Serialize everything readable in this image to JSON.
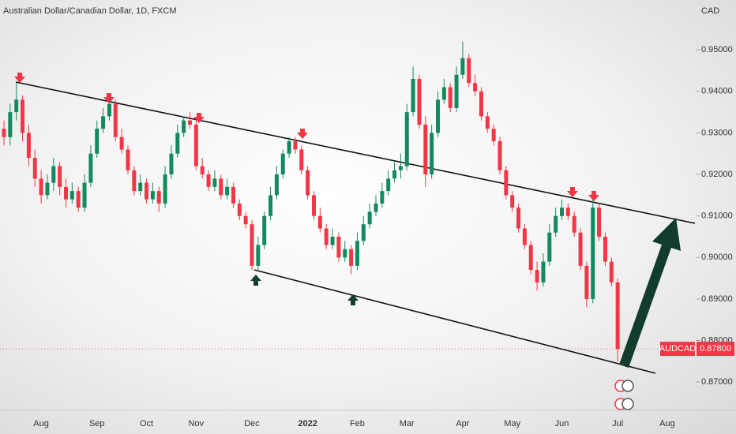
{
  "chart_data": {
    "type": "candlestick",
    "title": "Australian Dollar/Canadian Dollar, 1D, FXCM",
    "currency": "CAD",
    "up_color": "#138a5e",
    "down_color": "#f23645",
    "categories": [
      null,
      null,
      null,
      null,
      null,
      null,
      "Aug",
      null,
      null,
      null,
      null,
      null,
      null,
      null,
      null,
      "Sep",
      null,
      null,
      null,
      null,
      null,
      null,
      null,
      "Oct",
      null,
      null,
      null,
      null,
      null,
      null,
      null,
      "Nov",
      null,
      null,
      null,
      null,
      null,
      null,
      null,
      null,
      "Dec",
      null,
      null,
      null,
      null,
      null,
      null,
      null,
      null,
      "2022",
      null,
      null,
      null,
      null,
      null,
      null,
      null,
      "Feb",
      null,
      null,
      null,
      null,
      null,
      null,
      null,
      "Mar",
      null,
      null,
      null,
      null,
      null,
      null,
      null,
      null,
      "Apr",
      null,
      null,
      null,
      null,
      null,
      null,
      null,
      "May",
      null,
      null,
      null,
      null,
      null,
      null,
      null,
      "Jun",
      null,
      null,
      null,
      null,
      null,
      null,
      null,
      null,
      "Jul",
      null,
      null,
      null,
      null,
      null,
      null,
      null,
      "Aug"
    ],
    "open": [
      0.931,
      0.929,
      0.935,
      0.938,
      0.93,
      0.924,
      0.919,
      0.915,
      0.918,
      0.922,
      0.917,
      0.914,
      0.916,
      0.912,
      0.918,
      0.925,
      0.931,
      0.934,
      0.937,
      0.929,
      0.926,
      0.921,
      0.916,
      0.918,
      0.914,
      0.916,
      0.913,
      0.92,
      0.925,
      0.93,
      0.933,
      0.932,
      0.922,
      0.92,
      0.917,
      0.919,
      0.915,
      0.917,
      0.913,
      0.91,
      0.908,
      0.898,
      0.903,
      0.91,
      0.915,
      0.92,
      0.925,
      0.928,
      0.926,
      0.921,
      0.915,
      0.91,
      0.907,
      0.903,
      0.905,
      0.9,
      0.902,
      0.898,
      0.904,
      0.908,
      0.911,
      0.913,
      0.916,
      0.919,
      0.921,
      0.922,
      0.935,
      0.943,
      0.932,
      0.92,
      0.93,
      0.938,
      0.941,
      0.936,
      0.944,
      0.948,
      0.942,
      0.94,
      0.934,
      0.931,
      0.928,
      0.921,
      0.915,
      0.912,
      0.907,
      0.903,
      0.897,
      0.894,
      0.899,
      0.906,
      0.91,
      0.912,
      0.91,
      0.906,
      0.898,
      0.89,
      0.912,
      0.905,
      0.899,
      0.894,
      null,
      null,
      null,
      null,
      null,
      null,
      null,
      null
    ],
    "high": [
      0.933,
      0.937,
      0.942,
      0.939,
      0.932,
      0.926,
      0.921,
      0.92,
      0.924,
      0.923,
      0.919,
      0.918,
      0.917,
      0.92,
      0.927,
      0.933,
      0.936,
      0.939,
      0.938,
      0.931,
      0.927,
      0.922,
      0.92,
      0.919,
      0.918,
      0.917,
      0.922,
      0.927,
      0.932,
      0.934,
      0.935,
      0.933,
      0.924,
      0.921,
      0.921,
      0.92,
      0.919,
      0.918,
      0.914,
      0.911,
      0.909,
      0.905,
      0.911,
      0.917,
      0.922,
      0.926,
      0.929,
      0.929,
      0.927,
      0.922,
      0.916,
      0.912,
      0.908,
      0.907,
      0.906,
      0.904,
      0.903,
      0.906,
      0.91,
      0.913,
      0.915,
      0.918,
      0.921,
      0.923,
      0.925,
      0.937,
      0.946,
      0.944,
      0.934,
      0.932,
      0.94,
      0.943,
      0.942,
      0.946,
      0.952,
      0.949,
      0.944,
      0.941,
      0.935,
      0.932,
      0.929,
      0.922,
      0.916,
      0.913,
      0.908,
      0.904,
      0.899,
      0.901,
      0.908,
      0.912,
      0.914,
      0.913,
      0.911,
      0.907,
      0.899,
      0.914,
      0.913,
      0.906,
      0.9,
      0.895,
      null,
      null,
      null,
      null,
      null,
      null,
      null,
      null
    ],
    "low": [
      0.927,
      0.927,
      0.933,
      0.928,
      0.922,
      0.917,
      0.913,
      0.914,
      0.916,
      0.915,
      0.912,
      0.913,
      0.911,
      0.911,
      0.917,
      0.924,
      0.93,
      0.933,
      0.928,
      0.925,
      0.92,
      0.915,
      0.915,
      0.913,
      0.913,
      0.911,
      0.912,
      0.919,
      0.924,
      0.929,
      0.931,
      0.921,
      0.919,
      0.916,
      0.916,
      0.914,
      0.914,
      0.912,
      0.909,
      0.907,
      0.897,
      0.897,
      0.902,
      0.909,
      0.914,
      0.919,
      0.924,
      0.925,
      0.92,
      0.914,
      0.909,
      0.906,
      0.902,
      0.902,
      0.899,
      0.899,
      0.896,
      0.897,
      0.903,
      0.907,
      0.91,
      0.912,
      0.915,
      0.918,
      0.919,
      0.921,
      0.934,
      0.931,
      0.917,
      0.919,
      0.929,
      0.937,
      0.935,
      0.935,
      0.943,
      0.941,
      0.939,
      0.933,
      0.93,
      0.927,
      0.92,
      0.914,
      0.911,
      0.906,
      0.902,
      0.896,
      0.892,
      0.893,
      0.898,
      0.905,
      0.909,
      0.909,
      0.905,
      0.897,
      0.888,
      0.889,
      0.904,
      0.898,
      0.893,
      0.875,
      null,
      null,
      null,
      null,
      null,
      null,
      null,
      null
    ],
    "close": [
      0.929,
      0.935,
      0.938,
      0.93,
      0.924,
      0.919,
      0.915,
      0.918,
      0.922,
      0.917,
      0.914,
      0.916,
      0.912,
      0.918,
      0.925,
      0.931,
      0.934,
      0.937,
      0.929,
      0.926,
      0.921,
      0.916,
      0.918,
      0.914,
      0.916,
      0.913,
      0.92,
      0.925,
      0.93,
      0.933,
      0.932,
      0.922,
      0.92,
      0.917,
      0.919,
      0.915,
      0.917,
      0.913,
      0.91,
      0.908,
      0.898,
      0.903,
      0.91,
      0.915,
      0.92,
      0.925,
      0.928,
      0.926,
      0.921,
      0.915,
      0.91,
      0.907,
      0.903,
      0.905,
      0.9,
      0.902,
      0.898,
      0.904,
      0.908,
      0.911,
      0.913,
      0.916,
      0.919,
      0.921,
      0.922,
      0.935,
      0.943,
      0.932,
      0.92,
      0.93,
      0.938,
      0.941,
      0.936,
      0.944,
      0.948,
      0.942,
      0.94,
      0.934,
      0.931,
      0.928,
      0.921,
      0.915,
      0.912,
      0.907,
      0.903,
      0.897,
      0.894,
      0.899,
      0.906,
      0.91,
      0.912,
      0.91,
      0.906,
      0.898,
      0.89,
      0.912,
      0.905,
      0.899,
      0.894,
      0.878,
      null,
      null,
      null,
      null,
      null,
      null,
      null,
      null
    ],
    "ylim": [
      0.8632,
      0.962
    ],
    "yticks": [
      {
        "value": 0.87,
        "label": "0.87000"
      },
      {
        "value": 0.88,
        "label": "0.88000"
      },
      {
        "value": 0.89,
        "label": "0.89000"
      },
      {
        "value": 0.9,
        "label": "0.90000"
      },
      {
        "value": 0.91,
        "label": "0.91000"
      },
      {
        "value": 0.92,
        "label": "0.92000"
      },
      {
        "value": 0.93,
        "label": "0.93000"
      },
      {
        "value": 0.94,
        "label": "0.94000"
      },
      {
        "value": 0.95,
        "label": "0.95000"
      }
    ],
    "last_price": {
      "symbol": "AUDCAD",
      "value": 0.878,
      "label": "0.87800"
    }
  }
}
